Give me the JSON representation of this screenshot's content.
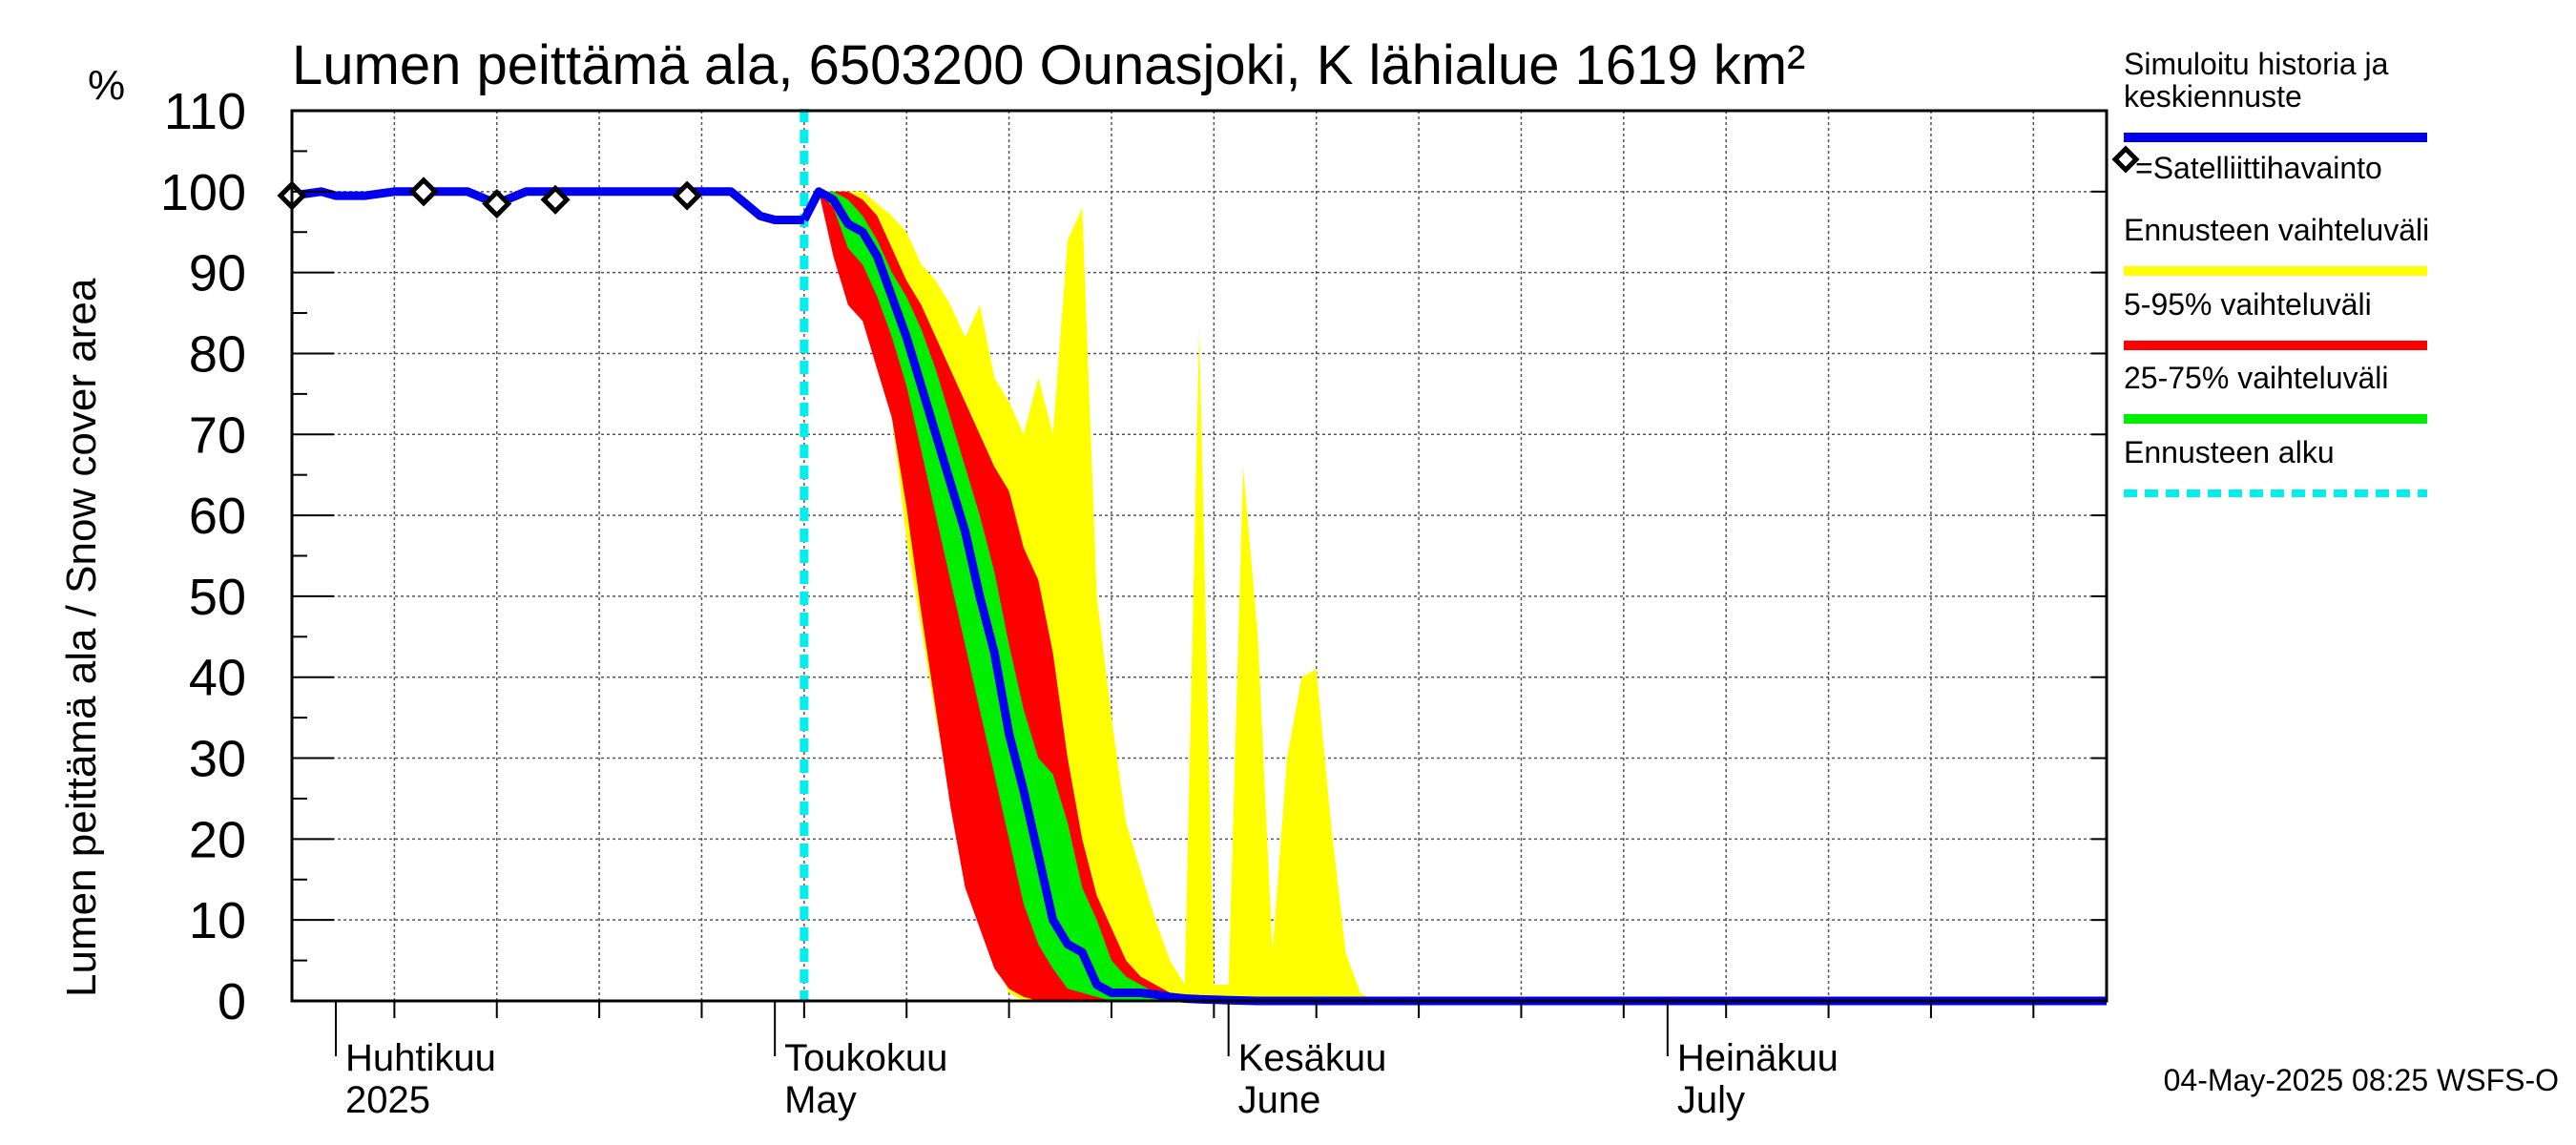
{
  "chart_data": {
    "type": "area",
    "title": "Lumen peittämä ala, 6503200 Ounasjoki, K lähialue 1619 km²",
    "ylabel": "Lumen peittämä ala / Snow cover area",
    "yunit": "%",
    "ylim": [
      0,
      110
    ],
    "yticks": [
      0,
      10,
      20,
      30,
      40,
      50,
      60,
      70,
      80,
      90,
      100,
      110
    ],
    "xlim": [
      "2025-03-29",
      "2025-07-31"
    ],
    "grid": true,
    "forecast_start": "2025-05-03",
    "month_ticks": [
      {
        "date": "2025-04-01",
        "fi": "Huhtikuu",
        "en": "2025"
      },
      {
        "date": "2025-05-01",
        "fi": "Toukokuu",
        "en": "May"
      },
      {
        "date": "2025-06-01",
        "fi": "Kesäkuu",
        "en": "June"
      },
      {
        "date": "2025-07-01",
        "fi": "Heinäkuu",
        "en": "July"
      }
    ],
    "legend": {
      "placement": "right",
      "items": [
        {
          "label_lines": [
            "Simuloitu historia ja",
            "keskiennuste"
          ],
          "color": "#0000ee",
          "kind": "line"
        },
        {
          "label_lines": [
            "=Satelliittihavainto"
          ],
          "color": "#000000",
          "kind": "marker"
        },
        {
          "label_lines": [
            "Ennusteen vaihteluväli"
          ],
          "color": "#ffff00",
          "kind": "band"
        },
        {
          "label_lines": [
            "5-95% vaihteluväli"
          ],
          "color": "#ff0000",
          "kind": "band"
        },
        {
          "label_lines": [
            "25-75% vaihteluväli"
          ],
          "color": "#00ee00",
          "kind": "band"
        },
        {
          "label_lines": [
            "Ennusteen alku"
          ],
          "color": "#00eeee",
          "kind": "dashed"
        }
      ]
    },
    "history": {
      "x": [
        "2025-03-29",
        "2025-03-31",
        "2025-04-01",
        "2025-04-03",
        "2025-04-05",
        "2025-04-07",
        "2025-04-08",
        "2025-04-10",
        "2025-04-12",
        "2025-04-14",
        "2025-04-15",
        "2025-04-17",
        "2025-04-20",
        "2025-04-25",
        "2025-04-28",
        "2025-04-29",
        "2025-04-30",
        "2025-05-01",
        "2025-05-03"
      ],
      "y": [
        99.5,
        100,
        99.5,
        99.5,
        100,
        100,
        100,
        100,
        98.5,
        100,
        100,
        100,
        100,
        100,
        100,
        98.5,
        97,
        96.5,
        96.5
      ]
    },
    "median": {
      "x": [
        "2025-05-03",
        "2025-05-04",
        "2025-05-05",
        "2025-05-06",
        "2025-05-07",
        "2025-05-08",
        "2025-05-09",
        "2025-05-10",
        "2025-05-11",
        "2025-05-12",
        "2025-05-13",
        "2025-05-14",
        "2025-05-15",
        "2025-05-16",
        "2025-05-17",
        "2025-05-18",
        "2025-05-19",
        "2025-05-20",
        "2025-05-21",
        "2025-05-22",
        "2025-05-23",
        "2025-05-24",
        "2025-05-25",
        "2025-05-26",
        "2025-05-27",
        "2025-05-28",
        "2025-05-29",
        "2025-05-30",
        "2025-06-01",
        "2025-06-03",
        "2025-06-06",
        "2025-07-31"
      ],
      "y": [
        96.5,
        100,
        99,
        96,
        95,
        92,
        87,
        82,
        76,
        70,
        64,
        58,
        50,
        43,
        33,
        26,
        18,
        10,
        7,
        6,
        2,
        1,
        1,
        1,
        0.8,
        0.5,
        0.3,
        0.2,
        0.1,
        0,
        0,
        0
      ]
    },
    "ensemble_range": {
      "x": [
        "2025-05-03",
        "2025-05-04",
        "2025-05-05",
        "2025-05-07",
        "2025-05-09",
        "2025-05-10",
        "2025-05-11",
        "2025-05-12",
        "2025-05-13",
        "2025-05-14",
        "2025-05-15",
        "2025-05-16",
        "2025-05-17",
        "2025-05-18",
        "2025-05-19",
        "2025-05-20",
        "2025-05-21",
        "2025-05-22",
        "2025-05-23",
        "2025-05-24",
        "2025-05-25",
        "2025-05-26",
        "2025-05-27",
        "2025-05-28",
        "2025-05-29",
        "2025-05-30",
        "2025-05-31",
        "2025-06-01",
        "2025-06-02",
        "2025-06-03",
        "2025-06-04",
        "2025-06-05",
        "2025-06-06",
        "2025-06-07",
        "2025-06-08",
        "2025-06-09",
        "2025-06-10",
        "2025-06-11",
        "2025-06-12",
        "2025-06-13",
        "2025-06-14",
        "2025-06-15",
        "2025-07-31"
      ],
      "upper": [
        97,
        100,
        100,
        100,
        97,
        95,
        91,
        89,
        86,
        82,
        86,
        77,
        74,
        70,
        77,
        70,
        94,
        98,
        50,
        35,
        22,
        16,
        10,
        5,
        2,
        83,
        2,
        2,
        66,
        45,
        6,
        30,
        40,
        41,
        22,
        6,
        1,
        0,
        0,
        0,
        0,
        0,
        0
      ],
      "lower": [
        97,
        100,
        97,
        86,
        72,
        57,
        46,
        35,
        26,
        18,
        10,
        5,
        1,
        0,
        0,
        0,
        0,
        0,
        0,
        0,
        0,
        0,
        0,
        0,
        0,
        0,
        0,
        0,
        0,
        0,
        0,
        0,
        0,
        0,
        0,
        0,
        0,
        0,
        0,
        0,
        0,
        0,
        0
      ]
    },
    "band_5_95": {
      "x": [
        "2025-05-03",
        "2025-05-04",
        "2025-05-05",
        "2025-05-06",
        "2025-05-07",
        "2025-05-08",
        "2025-05-09",
        "2025-05-10",
        "2025-05-11",
        "2025-05-12",
        "2025-05-13",
        "2025-05-14",
        "2025-05-15",
        "2025-05-16",
        "2025-05-17",
        "2025-05-18",
        "2025-05-19",
        "2025-05-20",
        "2025-05-21",
        "2025-05-22",
        "2025-05-23",
        "2025-05-24",
        "2025-05-25",
        "2025-05-26",
        "2025-05-27",
        "2025-05-28",
        "2025-05-29",
        "2025-05-30",
        "2025-06-01",
        "2025-06-03",
        "2025-07-31"
      ],
      "upper": [
        96.5,
        100,
        100,
        100,
        99,
        97,
        93,
        89,
        86,
        82,
        78,
        74,
        70,
        66,
        63,
        56,
        52,
        43,
        30,
        20,
        13,
        9,
        5,
        3,
        2,
        1,
        0.8,
        0.5,
        0.2,
        0,
        0
      ],
      "lower": [
        96.5,
        100,
        92,
        86,
        84,
        78,
        72,
        61,
        48,
        36,
        24,
        14,
        9,
        4,
        1.5,
        0.5,
        0,
        0,
        0,
        0,
        0,
        0,
        0,
        0,
        0,
        0,
        0,
        0,
        0,
        0,
        0
      ]
    },
    "band_25_75": {
      "x": [
        "2025-05-03",
        "2025-05-04",
        "2025-05-05",
        "2025-05-06",
        "2025-05-07",
        "2025-05-08",
        "2025-05-09",
        "2025-05-10",
        "2025-05-11",
        "2025-05-12",
        "2025-05-13",
        "2025-05-14",
        "2025-05-15",
        "2025-05-16",
        "2025-05-17",
        "2025-05-18",
        "2025-05-19",
        "2025-05-20",
        "2025-05-21",
        "2025-05-22",
        "2025-05-23",
        "2025-05-24",
        "2025-05-25",
        "2025-05-26",
        "2025-05-27",
        "2025-05-28",
        "2025-05-29",
        "2025-05-30",
        "2025-06-01",
        "2025-06-03",
        "2025-07-31"
      ],
      "upper": [
        96.5,
        100,
        100,
        99,
        97,
        94,
        90,
        87,
        83,
        78,
        72,
        66,
        60,
        53,
        44,
        36,
        30,
        28,
        22,
        14,
        10,
        5,
        3,
        2,
        1,
        0.5,
        0.3,
        0.2,
        0.1,
        0,
        0
      ],
      "lower": [
        96.5,
        100,
        98,
        93,
        91,
        87,
        82,
        76,
        68,
        60,
        52,
        44,
        36,
        28,
        20,
        12,
        7,
        4,
        1.5,
        1,
        0.5,
        0,
        0,
        0,
        0,
        0,
        0,
        0,
        0,
        0,
        0
      ]
    },
    "satellite": {
      "x": [
        "2025-03-29",
        "2025-04-07",
        "2025-04-12",
        "2025-04-16",
        "2025-04-25"
      ],
      "y": [
        99.5,
        100,
        98.5,
        99,
        99.5
      ]
    },
    "footer": "04-May-2025 08:25 WSFS-O"
  }
}
